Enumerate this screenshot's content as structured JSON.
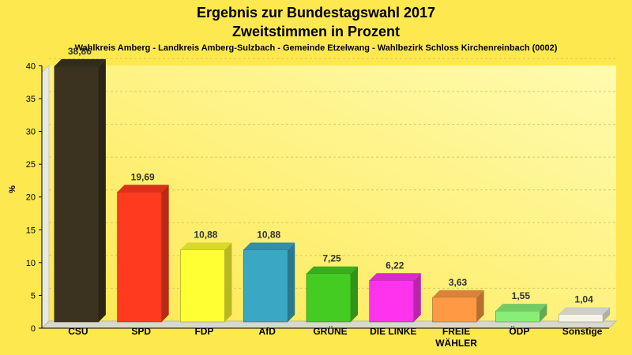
{
  "chart_data": {
    "type": "bar",
    "title": "Ergebnis zur Bundestagswahl 2017",
    "subtitle": "Zweitstimmen in Prozent",
    "caption": "Wahlkreis Amberg - Landkreis Amberg-Sulzbach - Gemeinde Etzelwang - Wahlbezirk Schloss Kirchenreinbach (0002)",
    "ylabel": "%",
    "xlabel": "",
    "ylim": [
      0,
      40
    ],
    "yticks": [
      "0",
      "5",
      "10",
      "15",
      "20",
      "25",
      "30",
      "35",
      "40"
    ],
    "grid": true,
    "categories": [
      [
        "CSU"
      ],
      [
        "SPD"
      ],
      [
        "FDP"
      ],
      [
        "AfD"
      ],
      [
        "GRÜNE"
      ],
      [
        "DIE LINKE"
      ],
      [
        "FREIE",
        "WÄHLER"
      ],
      [
        "ÖDP"
      ],
      [
        "Sonstige"
      ]
    ],
    "values": [
      38.86,
      19.69,
      10.88,
      10.88,
      7.25,
      6.22,
      3.63,
      1.55,
      1.04
    ],
    "value_labels": [
      "38,86",
      "19,69",
      "10,88",
      "10,88",
      "7,25",
      "6,22",
      "3,63",
      "1,55",
      "1,04"
    ],
    "colors": [
      "#3b3320",
      "#ff3a1e",
      "#ffff33",
      "#3aa8c4",
      "#44cc22",
      "#ff33ee",
      "#ff9944",
      "#88ee77",
      "#f4f4e8"
    ],
    "background": "#fde84f"
  }
}
